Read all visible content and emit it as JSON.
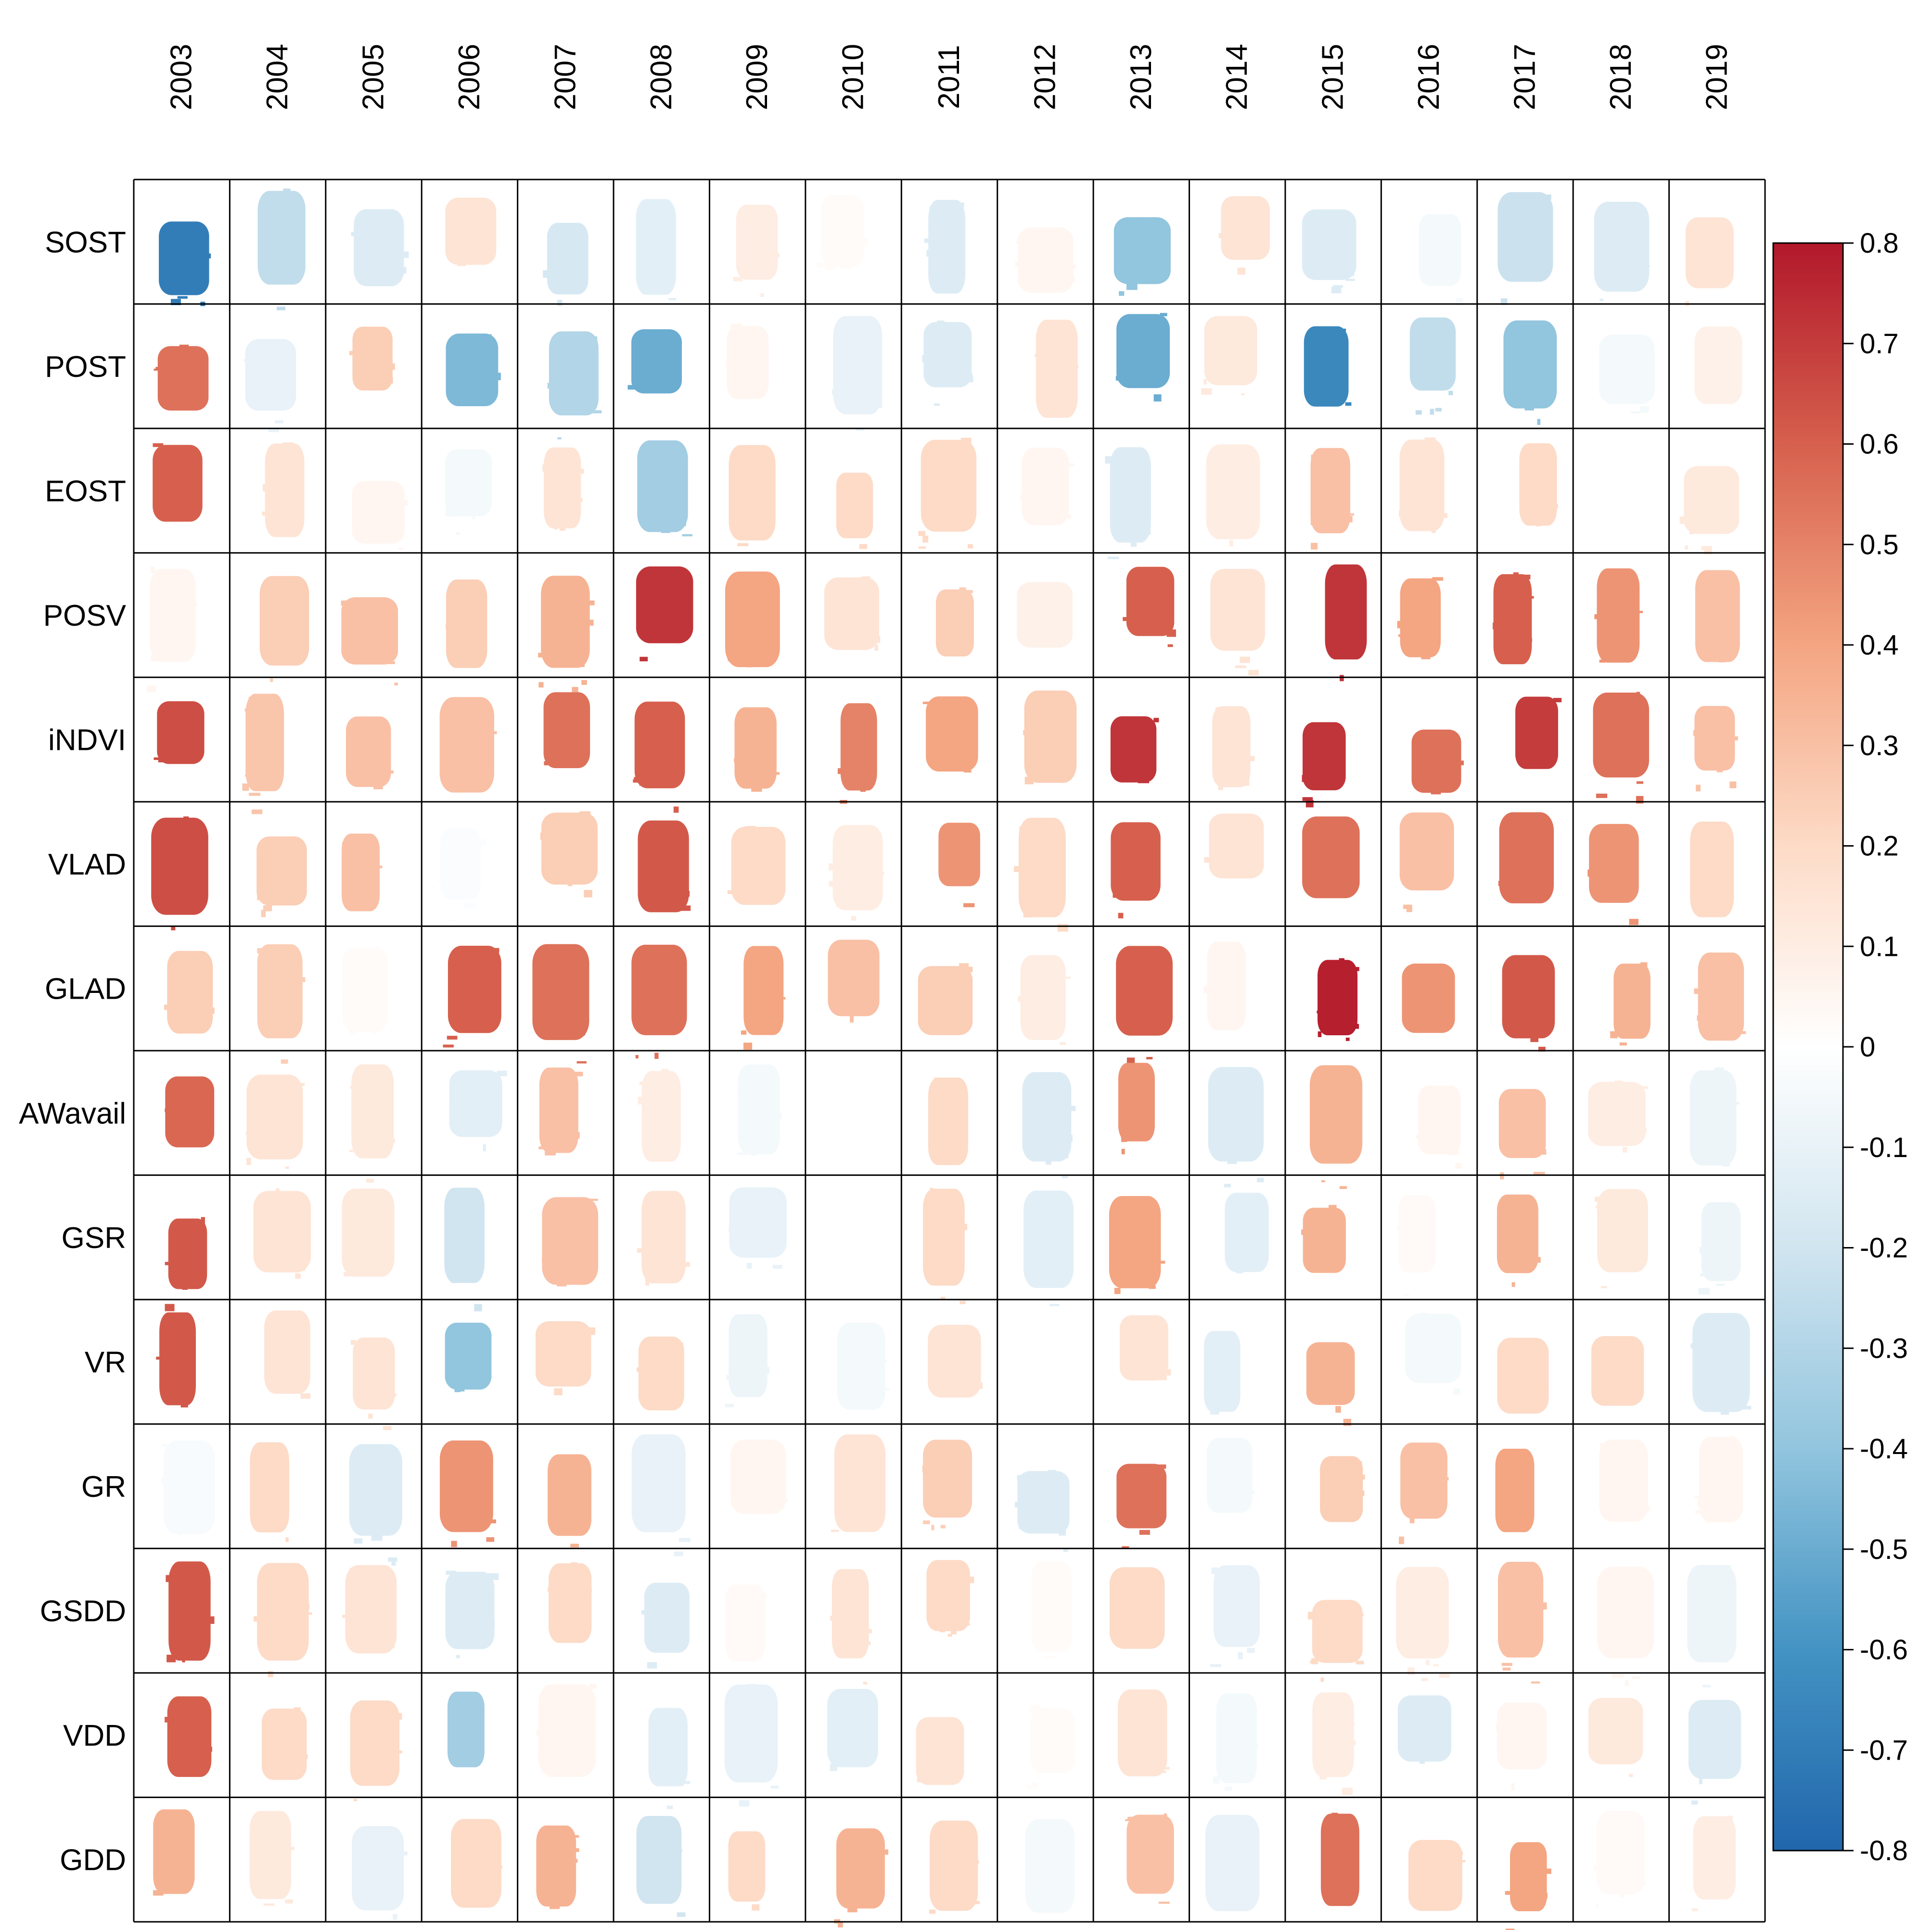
{
  "chart_data": {
    "type": "heatmap",
    "title": "",
    "xlabel": "",
    "ylabel": "",
    "years": [
      "2003",
      "2004",
      "2005",
      "2006",
      "2007",
      "2008",
      "2009",
      "2010",
      "2011",
      "2012",
      "2013",
      "2014",
      "2015",
      "2016",
      "2017",
      "2018",
      "2019"
    ],
    "variables": [
      "SOST",
      "POST",
      "EOST",
      "POSV",
      "iNDVI",
      "VLAD",
      "GLAD",
      "AWavail",
      "GSR",
      "VR",
      "GR",
      "GSDD",
      "VDD",
      "GDD"
    ],
    "values": [
      [
        -0.7,
        -0.25,
        -0.15,
        0.15,
        -0.18,
        -0.12,
        0.1,
        0.02,
        -0.15,
        0.05,
        -0.4,
        0.15,
        -0.15,
        -0.05,
        -0.22,
        -0.15,
        0.15
      ],
      [
        0.55,
        -0.1,
        0.25,
        -0.45,
        -0.3,
        -0.5,
        0.05,
        -0.1,
        -0.15,
        0.15,
        -0.5,
        0.12,
        -0.65,
        -0.25,
        -0.4,
        -0.05,
        0.08
      ],
      [
        0.6,
        0.15,
        0.05,
        -0.05,
        0.15,
        -0.35,
        0.2,
        0.2,
        0.2,
        0.05,
        -0.15,
        0.1,
        0.3,
        0.15,
        0.2,
        0,
        0.12
      ],
      [
        0.05,
        0.25,
        0.3,
        0.25,
        0.35,
        0.72,
        0.4,
        0.15,
        0.25,
        0.08,
        0.6,
        0.15,
        0.72,
        0.4,
        0.6,
        0.45,
        0.3
      ],
      [
        0.65,
        0.28,
        0.3,
        0.3,
        0.55,
        0.6,
        0.35,
        0.5,
        0.4,
        0.25,
        0.72,
        0.15,
        0.72,
        0.55,
        0.7,
        0.55,
        0.3
      ],
      [
        0.65,
        0.25,
        0.3,
        -0.02,
        0.25,
        0.62,
        0.2,
        0.1,
        0.45,
        0.2,
        0.6,
        0.15,
        0.55,
        0.3,
        0.55,
        0.45,
        0.2
      ],
      [
        0.25,
        0.25,
        0.02,
        0.6,
        0.55,
        0.55,
        0.4,
        0.3,
        0.25,
        0.1,
        0.6,
        0.05,
        0.78,
        0.45,
        0.62,
        0.35,
        0.3
      ],
      [
        0.58,
        0.15,
        0.12,
        -0.12,
        0.3,
        0.1,
        -0.05,
        0,
        0.2,
        -0.15,
        0.45,
        -0.15,
        0.35,
        0.05,
        0.3,
        0.1,
        -0.08
      ],
      [
        0.62,
        0.15,
        0.12,
        -0.2,
        0.3,
        0.15,
        -0.1,
        0,
        0.2,
        -0.12,
        0.4,
        -0.12,
        0.35,
        0.03,
        0.35,
        0.12,
        -0.08
      ],
      [
        0.62,
        0.15,
        0.15,
        -0.4,
        0.2,
        0.2,
        -0.08,
        -0.05,
        0.15,
        0,
        0.15,
        -0.12,
        0.35,
        -0.05,
        0.2,
        0.2,
        -0.15
      ],
      [
        -0.03,
        0.2,
        -0.15,
        0.45,
        0.35,
        -0.1,
        0.05,
        0.15,
        0.25,
        -0.15,
        0.55,
        -0.05,
        0.25,
        0.3,
        0.4,
        0.05,
        0.05
      ],
      [
        0.62,
        0.2,
        0.15,
        -0.15,
        0.2,
        -0.15,
        0.03,
        0.15,
        0.2,
        0.02,
        0.2,
        -0.1,
        0.2,
        0.1,
        0.3,
        0.05,
        -0.08
      ],
      [
        0.6,
        0.2,
        0.2,
        -0.35,
        0.05,
        -0.12,
        -0.1,
        -0.12,
        0.15,
        0.02,
        0.15,
        -0.05,
        0.1,
        -0.15,
        0.05,
        0.12,
        -0.15
      ],
      [
        0.35,
        0.12,
        -0.1,
        0.2,
        0.35,
        -0.2,
        0.2,
        0.35,
        0.2,
        -0.05,
        0.3,
        -0.1,
        0.55,
        0.2,
        0.4,
        0.03,
        0.1
      ]
    ],
    "legend": {
      "position": "right",
      "ticks": [
        "0.8",
        "0.7",
        "0.6",
        "0.5",
        "0.4",
        "0.3",
        "0.2",
        "0.1",
        "0",
        "-0.1",
        "-0.2",
        "-0.3",
        "-0.4",
        "-0.5",
        "-0.6",
        "-0.7",
        "-0.8"
      ],
      "range": [
        -0.8,
        0.8
      ]
    },
    "colors": {
      "low": "#2166ac",
      "mid": "#ffffff",
      "high": "#b2182b",
      "stops": [
        "#2166ac",
        "#4393c3",
        "#92c5de",
        "#d1e5f0",
        "#ffffff",
        "#fddbc7",
        "#f4a582",
        "#d6604d",
        "#b2182b"
      ]
    }
  }
}
